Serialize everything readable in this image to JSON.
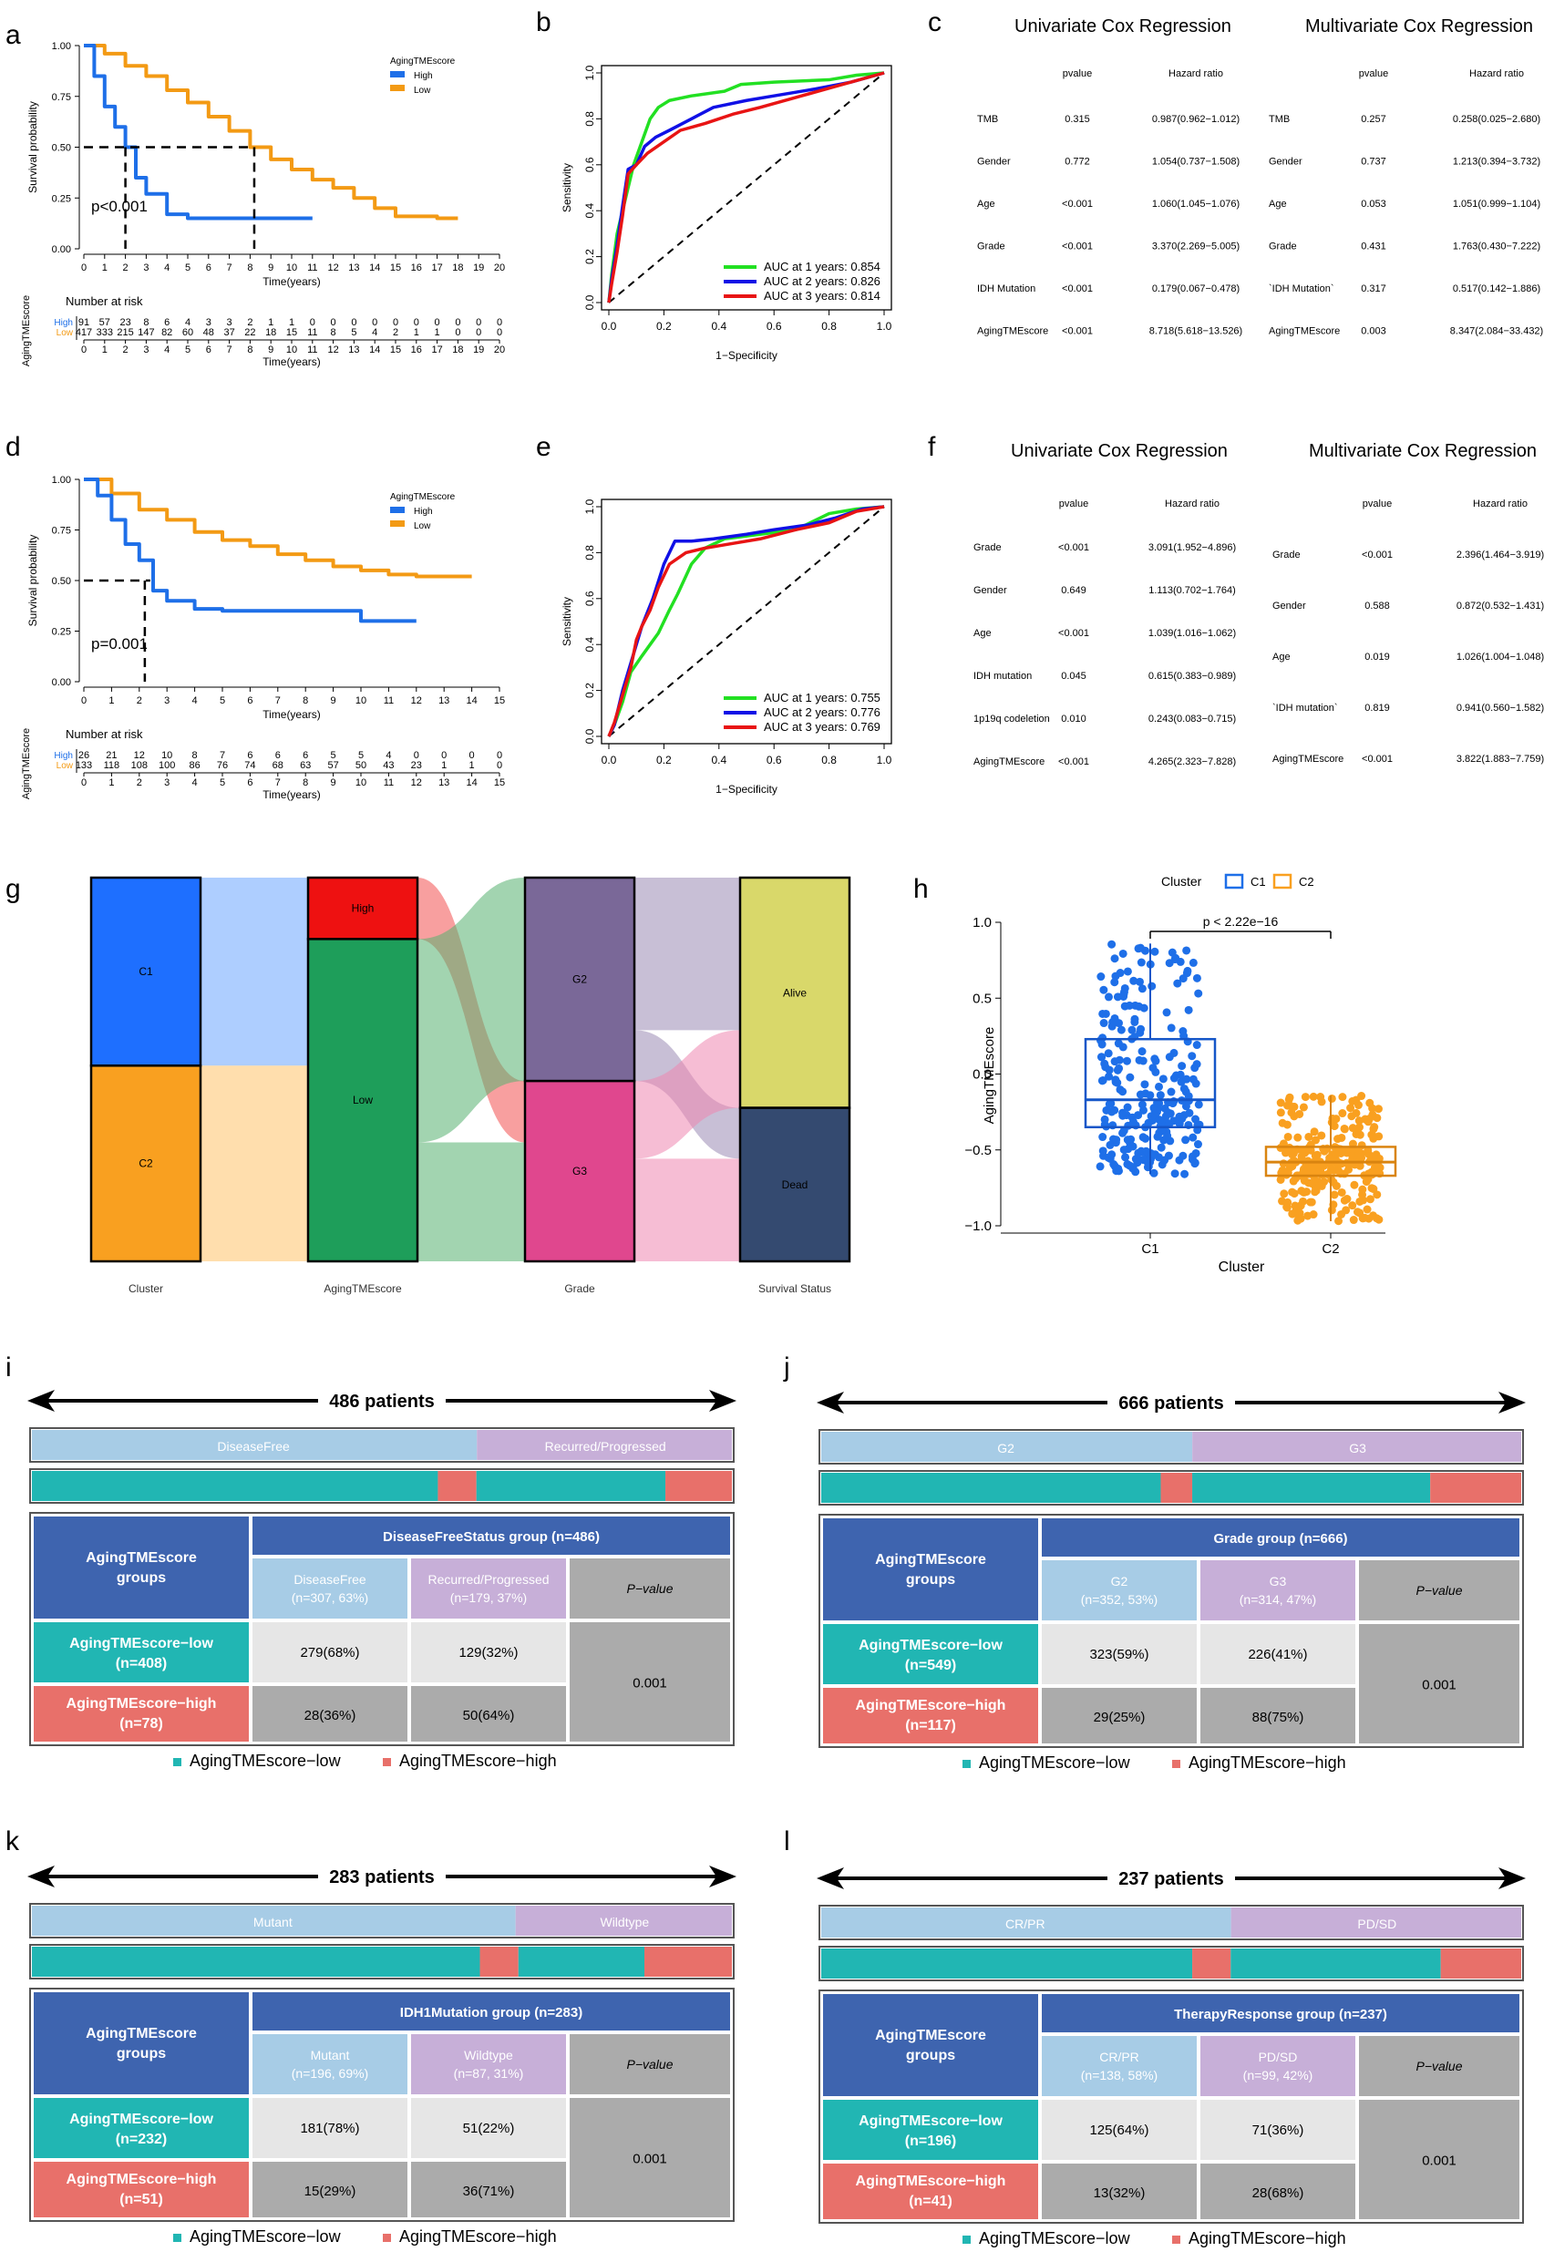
{
  "colors": {
    "high": "#1E6FE8",
    "low": "#F39A14",
    "green": "#22E022",
    "blue": "#1010E6",
    "red": "#E81414",
    "c1": "#1E6FE8",
    "c2": "#F9A020",
    "teal": "#21B6B3",
    "salmon": "#E8706A",
    "tbl_header": "#3E64AF",
    "tbl_light_blue": "#A7CCE6",
    "tbl_light_purple": "#C7AFD8",
    "tbl_gray": "#ABABAB",
    "tbl_lightgray": "#E6E6E6"
  },
  "panel_labels": [
    "a",
    "b",
    "c",
    "d",
    "e",
    "f",
    "g",
    "h",
    "i",
    "j",
    "k",
    "l"
  ],
  "km_a": {
    "ylabel": "Survival probability",
    "xlabel": "Time(years)",
    "legend_title": "AgingTMEscore",
    "legend": [
      "High",
      "Low"
    ],
    "pvalue": "p<0.001",
    "yticks": [
      "0.00",
      "0.25",
      "0.50",
      "0.75",
      "1.00"
    ],
    "xticks": [
      "0",
      "1",
      "2",
      "3",
      "4",
      "5",
      "6",
      "7",
      "8",
      "9",
      "10",
      "11",
      "12",
      "13",
      "14",
      "15",
      "16",
      "17",
      "18",
      "19",
      "20"
    ],
    "median_high": 2.0,
    "median_low": 8.2,
    "risk_title": "Number at risk",
    "risk_ylabel": "AgingTMEscore",
    "risk_labels": [
      "High",
      "Low"
    ],
    "risk_high": [
      "91",
      "57",
      "23",
      "8",
      "6",
      "4",
      "3",
      "3",
      "2",
      "1",
      "1",
      "0",
      "0",
      "0",
      "0",
      "0",
      "0",
      "0",
      "0",
      "0",
      "0"
    ],
    "risk_low": [
      "417",
      "333",
      "215",
      "147",
      "82",
      "60",
      "48",
      "37",
      "22",
      "18",
      "15",
      "11",
      "8",
      "5",
      "4",
      "2",
      "1",
      "1",
      "0",
      "0",
      "0"
    ]
  },
  "km_d": {
    "ylabel": "Survival probability",
    "xlabel": "Time(years)",
    "legend_title": "AgingTMEscore",
    "legend": [
      "High",
      "Low"
    ],
    "pvalue": "p=0.001",
    "yticks": [
      "0.00",
      "0.25",
      "0.50",
      "0.75",
      "1.00"
    ],
    "xticks": [
      "0",
      "1",
      "2",
      "3",
      "4",
      "5",
      "6",
      "7",
      "8",
      "9",
      "10",
      "11",
      "12",
      "13",
      "14",
      "15"
    ],
    "median_high": 2.2,
    "risk_title": "Number at risk",
    "risk_ylabel": "AgingTMEscore",
    "risk_labels": [
      "High",
      "Low"
    ],
    "risk_high": [
      "26",
      "21",
      "12",
      "10",
      "8",
      "7",
      "6",
      "6",
      "6",
      "5",
      "5",
      "4",
      "0",
      "0",
      "0",
      "0"
    ],
    "risk_low": [
      "133",
      "118",
      "108",
      "100",
      "86",
      "76",
      "74",
      "68",
      "63",
      "57",
      "50",
      "43",
      "23",
      "1",
      "1",
      "0"
    ]
  },
  "roc_b": {
    "ylabel": "Sensitivity",
    "xlabel": "1−Specificity",
    "ticks": [
      "0.0",
      "0.2",
      "0.4",
      "0.6",
      "0.8",
      "1.0"
    ],
    "legend": [
      "AUC at 1 years: 0.854",
      "AUC at 2 years: 0.826",
      "AUC at 3 years: 0.814"
    ]
  },
  "roc_e": {
    "ylabel": "Sensitivity",
    "xlabel": "1−Specificity",
    "ticks": [
      "0.0",
      "0.2",
      "0.4",
      "0.6",
      "0.8",
      "1.0"
    ],
    "legend": [
      "AUC at 1 years: 0.755",
      "AUC at 2 years: 0.776",
      "AUC at 3 years: 0.769"
    ]
  },
  "cox_c": {
    "uni_title": "Univariate Cox Regression",
    "multi_title": "Multivariate Cox Regression",
    "col_p": "pvalue",
    "col_hr": "Hazard ratio",
    "uni_rows": [
      {
        "v": "TMB",
        "p": "0.315",
        "hr": "0.987(0.962−1.012)"
      },
      {
        "v": "Gender",
        "p": "0.772",
        "hr": "1.054(0.737−1.508)"
      },
      {
        "v": "Age",
        "p": "<0.001",
        "hr": "1.060(1.045−1.076)"
      },
      {
        "v": "Grade",
        "p": "<0.001",
        "hr": "3.370(2.269−5.005)"
      },
      {
        "v": "IDH Mutation",
        "p": "<0.001",
        "hr": "0.179(0.067−0.478)"
      },
      {
        "v": "AgingTMEscore",
        "p": "<0.001",
        "hr": "8.718(5.618−13.526)"
      }
    ],
    "multi_rows": [
      {
        "v": "TMB",
        "p": "0.257",
        "hr": "0.258(0.025−2.680)"
      },
      {
        "v": "Gender",
        "p": "0.737",
        "hr": "1.213(0.394−3.732)"
      },
      {
        "v": "Age",
        "p": "0.053",
        "hr": "1.051(0.999−1.104)"
      },
      {
        "v": "Grade",
        "p": "0.431",
        "hr": "1.763(0.430−7.222)"
      },
      {
        "v": "`IDH Mutation`",
        "p": "0.317",
        "hr": "0.517(0.142−1.886)"
      },
      {
        "v": "AgingTMEscore",
        "p": "0.003",
        "hr": "8.347(2.084−33.432)"
      }
    ]
  },
  "cox_f": {
    "uni_title": "Univariate Cox Regression",
    "multi_title": "Multivariate Cox Regression",
    "col_p": "pvalue",
    "col_hr": "Hazard ratio",
    "uni_rows": [
      {
        "v": "Grade",
        "p": "<0.001",
        "hr": "3.091(1.952−4.896)"
      },
      {
        "v": "Gender",
        "p": "0.649",
        "hr": "1.113(0.702−1.764)"
      },
      {
        "v": "Age",
        "p": "<0.001",
        "hr": "1.039(1.016−1.062)"
      },
      {
        "v": "IDH mutation",
        "p": "0.045",
        "hr": "0.615(0.383−0.989)"
      },
      {
        "v": "1p19q codeletion",
        "p": "0.010",
        "hr": "0.243(0.083−0.715)"
      },
      {
        "v": "AgingTMEscore",
        "p": "<0.001",
        "hr": "4.265(2.323−7.828)"
      }
    ],
    "multi_rows": [
      {
        "v": "Grade",
        "p": "<0.001",
        "hr": "2.396(1.464−3.919)"
      },
      {
        "v": "Gender",
        "p": "0.588",
        "hr": "0.872(0.532−1.431)"
      },
      {
        "v": "Age",
        "p": "0.019",
        "hr": "1.026(1.004−1.048)"
      },
      {
        "v": "`IDH mutation`",
        "p": "0.819",
        "hr": "0.941(0.560−1.582)"
      },
      {
        "v": "AgingTMEscore",
        "p": "<0.001",
        "hr": "3.822(1.883−7.759)"
      }
    ]
  },
  "sankey": {
    "axes": [
      "Cluster",
      "AgingTMEscore",
      "Grade",
      "Survival Status"
    ],
    "nodes": {
      "C1": "C1",
      "C2": "C2",
      "High": "High",
      "Low": "Low",
      "G2": "G2",
      "G3": "G3",
      "Alive": "Alive",
      "Dead": "Dead"
    },
    "proportions": {
      "C1": 0.49,
      "C2": 0.51,
      "High": 0.16,
      "Low": 0.84,
      "G2": 0.53,
      "G3": 0.47,
      "Alive": 0.6,
      "Dead": 0.4
    }
  },
  "box_h": {
    "legend_title": "Cluster",
    "legend": [
      "C1",
      "C2"
    ],
    "ylabel": "AgingTMEscore",
    "xlabel": "Cluster",
    "yticks": [
      "1.0",
      "0.5",
      "0.0",
      "−0.5",
      "−1.0"
    ],
    "xticks": [
      "C1",
      "C2"
    ],
    "pvalue": "p < 2.22e−16",
    "c1": {
      "min": -0.66,
      "q1": -0.35,
      "median": -0.17,
      "q3": 0.23,
      "max": 0.86
    },
    "c2": {
      "min": -0.97,
      "q1": -0.67,
      "median": -0.58,
      "q3": -0.48,
      "max": -0.14
    }
  },
  "chart_data": [
    {
      "type": "line",
      "title": "a: Kaplan-Meier AgingTMEscore",
      "xlabel": "Time(years)",
      "ylabel": "Survival probability",
      "xlim": [
        0,
        20
      ],
      "ylim": [
        0,
        1
      ],
      "series": [
        {
          "name": "High",
          "x": [
            0,
            0.5,
            1,
            1.5,
            2,
            2.5,
            3,
            4,
            5,
            6,
            11
          ],
          "values": [
            1,
            0.85,
            0.7,
            0.6,
            0.5,
            0.35,
            0.27,
            0.17,
            0.15,
            0.15,
            0.15
          ]
        },
        {
          "name": "Low",
          "x": [
            0,
            1,
            2,
            3,
            4,
            5,
            6,
            7,
            8,
            9,
            10,
            11,
            12,
            13,
            14,
            15,
            16,
            17,
            18
          ],
          "values": [
            1,
            0.96,
            0.9,
            0.85,
            0.78,
            0.72,
            0.65,
            0.58,
            0.5,
            0.44,
            0.39,
            0.34,
            0.3,
            0.25,
            0.2,
            0.16,
            0.16,
            0.15,
            0.15
          ]
        }
      ]
    },
    {
      "type": "line",
      "title": "b: ROC",
      "xlabel": "1−Specificity",
      "ylabel": "Sensitivity",
      "auc": {
        "1 years": 0.854,
        "2 years": 0.826,
        "3 years": 0.814
      }
    },
    {
      "type": "table",
      "title": "c: Cox regression (see cox_c)"
    },
    {
      "type": "line",
      "title": "d: Kaplan-Meier AgingTMEscore",
      "xlabel": "Time(years)",
      "ylabel": "Survival probability",
      "xlim": [
        0,
        15
      ],
      "ylim": [
        0,
        1
      ],
      "series": [
        {
          "name": "High",
          "x": [
            0,
            0.5,
            1,
            1.5,
            2,
            2.5,
            3,
            4,
            5,
            8,
            10,
            12
          ],
          "values": [
            1,
            0.92,
            0.8,
            0.68,
            0.6,
            0.45,
            0.4,
            0.36,
            0.35,
            0.35,
            0.3,
            0.3
          ]
        },
        {
          "name": "Low",
          "x": [
            0,
            1,
            2,
            3,
            4,
            5,
            6,
            7,
            8,
            9,
            10,
            11,
            12,
            13,
            14
          ],
          "values": [
            1,
            0.93,
            0.85,
            0.8,
            0.74,
            0.7,
            0.67,
            0.63,
            0.6,
            0.57,
            0.55,
            0.53,
            0.52,
            0.52,
            0.52
          ]
        }
      ]
    },
    {
      "type": "line",
      "title": "e: ROC",
      "xlabel": "1−Specificity",
      "ylabel": "Sensitivity",
      "auc": {
        "1 years": 0.755,
        "2 years": 0.776,
        "3 years": 0.769
      }
    },
    {
      "type": "table",
      "title": "f: Cox regression (see cox_f)"
    },
    {
      "type": "other",
      "title": "g: Sankey Cluster-AgingTMEscore-Grade-Survival Status"
    },
    {
      "type": "scatter",
      "title": "h: AgingTMEscore by Cluster",
      "categories": [
        "C1",
        "C2"
      ]
    }
  ],
  "tables": [
    {
      "key": "i",
      "count": "486 patients",
      "cats": [
        "DiseaseFree",
        "Recurred/Progressed"
      ],
      "cat_frac": 0.635,
      "bar": [
        0.58,
        0.055,
        0.27,
        0.095
      ],
      "corner": "AgingTMEscore groups",
      "group": "DiseaseFreeStatus group (n=486)",
      "sub1": "DiseaseFree",
      "sub1n": "(n=307, 63%)",
      "sub2": "Recurred/Progressed",
      "sub2n": "(n=179, 37%)",
      "ptitle": "P−value",
      "low_label": "AgingTMEscore−low",
      "low_n": "(n=408)",
      "high_label": "AgingTMEscore−high",
      "high_n": "(n=78)",
      "v11": "279(68%)",
      "v12": "129(32%)",
      "v21": "28(36%)",
      "v22": "50(64%)",
      "p": "0.001",
      "legend_low": "AgingTMEscore−low",
      "legend_high": "AgingTMEscore−high"
    },
    {
      "key": "j",
      "count": "666 patients",
      "cats": [
        "G2",
        "G3"
      ],
      "cat_frac": 0.53,
      "bar": [
        0.485,
        0.045,
        0.34,
        0.13
      ],
      "corner": "AgingTMEscore groups",
      "group": "Grade group (n=666)",
      "sub1": "G2",
      "sub1n": "(n=352, 53%)",
      "sub2": "G3",
      "sub2n": "(n=314, 47%)",
      "ptitle": "P−value",
      "low_label": "AgingTMEscore−low",
      "low_n": "(n=549)",
      "high_label": "AgingTMEscore−high",
      "high_n": "(n=117)",
      "v11": "323(59%)",
      "v12": "226(41%)",
      "v21": "29(25%)",
      "v22": "88(75%)",
      "p": "0.001",
      "legend_low": "AgingTMEscore−low",
      "legend_high": "AgingTMEscore−high"
    },
    {
      "key": "k",
      "count": "283 patients",
      "cats": [
        "Mutant",
        "Wildtype"
      ],
      "cat_frac": 0.69,
      "bar": [
        0.64,
        0.055,
        0.18,
        0.125
      ],
      "corner": "AgingTMEscore groups",
      "group": "IDH1Mutation group (n=283)",
      "sub1": "Mutant",
      "sub1n": "(n=196, 69%)",
      "sub2": "Wildtype",
      "sub2n": "(n=87, 31%)",
      "ptitle": "P−value",
      "low_label": "AgingTMEscore−low",
      "low_n": "(n=232)",
      "high_label": "AgingTMEscore−high",
      "high_n": "(n=51)",
      "v11": "181(78%)",
      "v12": "51(22%)",
      "v21": "15(29%)",
      "v22": "36(71%)",
      "p": "0.001",
      "legend_low": "AgingTMEscore−low",
      "legend_high": "AgingTMEscore−high"
    },
    {
      "key": "l",
      "count": "237 patients",
      "cats": [
        "CR/PR",
        "PD/SD"
      ],
      "cat_frac": 0.585,
      "bar": [
        0.53,
        0.055,
        0.3,
        0.115
      ],
      "corner": "AgingTMEscore groups",
      "group": "TherapyResponse group (n=237)",
      "sub1": "CR/PR",
      "sub1n": "(n=138, 58%)",
      "sub2": "PD/SD",
      "sub2n": "(n=99, 42%)",
      "ptitle": "P−value",
      "low_label": "AgingTMEscore−low",
      "low_n": "(n=196)",
      "high_label": "AgingTMEscore−high",
      "high_n": "(n=41)",
      "v11": "125(64%)",
      "v12": "71(36%)",
      "v21": "13(32%)",
      "v22": "28(68%)",
      "p": "0.001",
      "legend_low": "AgingTMEscore−low",
      "legend_high": "AgingTMEscore−high"
    }
  ]
}
